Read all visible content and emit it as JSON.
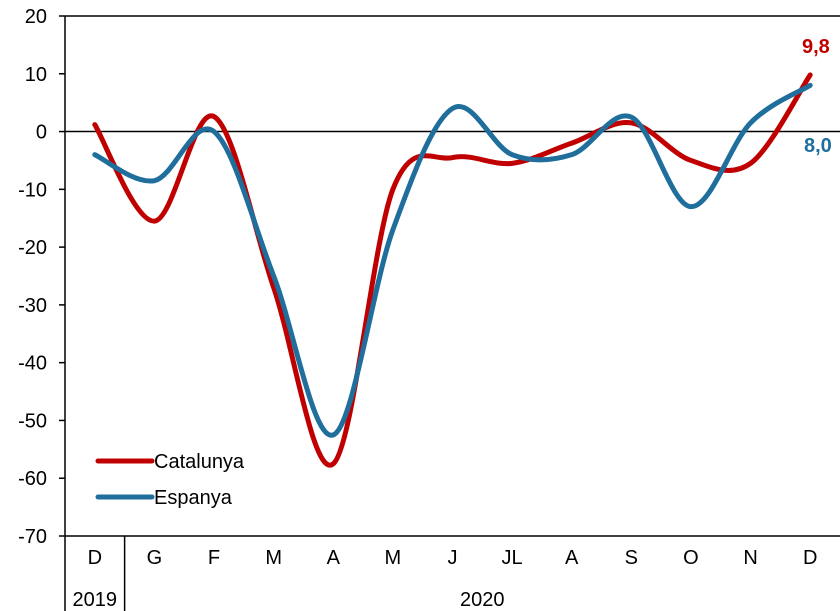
{
  "chart_data": {
    "type": "line",
    "title": "",
    "xlabel": "",
    "ylabel": "",
    "categories": [
      "D",
      "G",
      "F",
      "M",
      "A",
      "M",
      "J",
      "JL",
      "A",
      "S",
      "O",
      "N",
      "D"
    ],
    "year_labels": [
      "2019",
      "2020"
    ],
    "ylim": [
      -70,
      20
    ],
    "yticks": [
      "20",
      "10",
      "0",
      "-10",
      "-20",
      "-30",
      "-40",
      "-50",
      "-60",
      "-70"
    ],
    "smooth": true,
    "grid": false,
    "legend_position": "bottom-left",
    "series": [
      {
        "name": "Catalunya",
        "color": "#C00000",
        "values": [
          1.2,
          -15.5,
          2.6,
          -27,
          -57.5,
          -10,
          -4.5,
          -5.5,
          -2,
          1.5,
          -5,
          -5.5,
          9.8
        ],
        "end_label": "9,8"
      },
      {
        "name": "Espanya",
        "color": "#1F6E9C",
        "values": [
          -4,
          -8.5,
          0,
          -25,
          -52.5,
          -17,
          4,
          -4,
          -4,
          2.5,
          -13,
          1.5,
          8.0
        ],
        "end_label": "8,0"
      }
    ]
  }
}
